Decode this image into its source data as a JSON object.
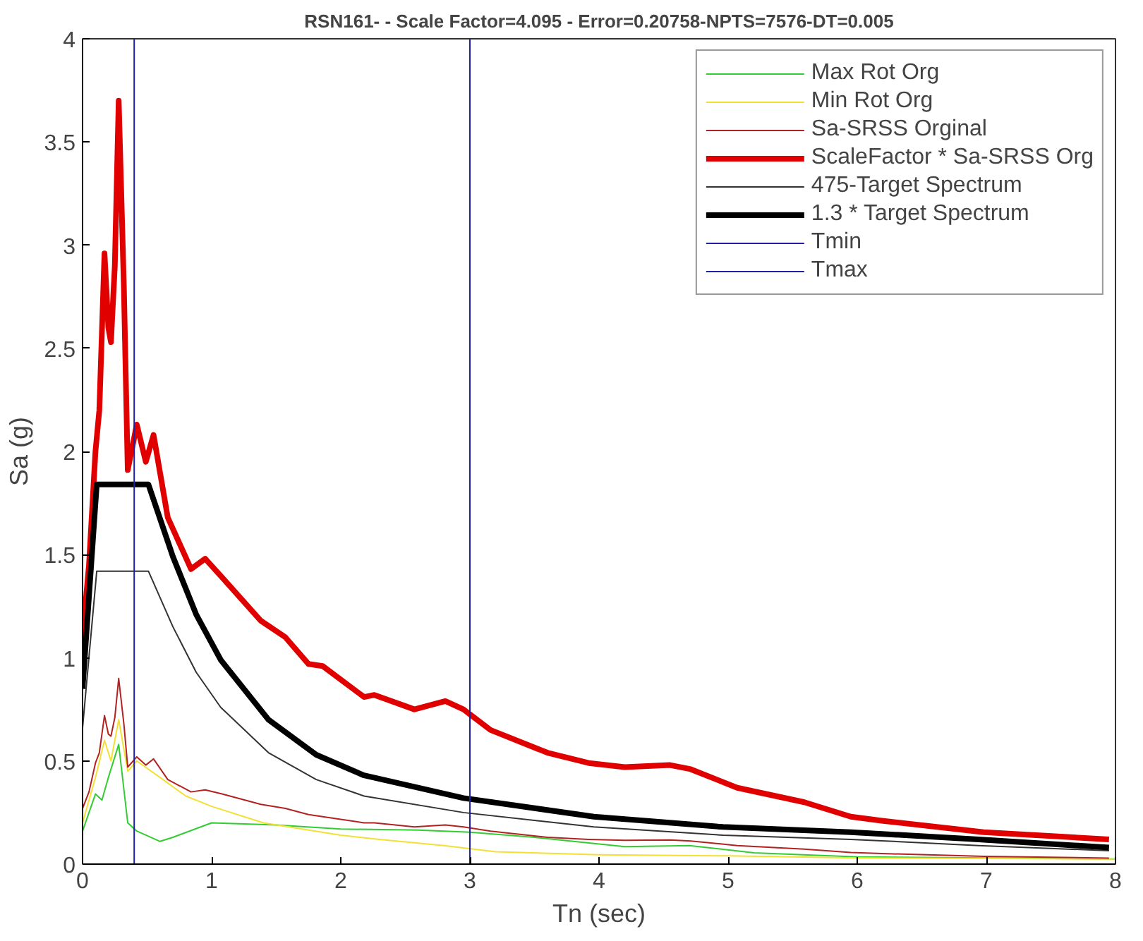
{
  "chart_data": {
    "type": "line",
    "title": "RSN161- - Scale Factor=4.095 - Error=0.20758-NPTS=7576-DT=0.005",
    "xlabel": "Tn (sec)",
    "ylabel": "Sa (g)",
    "xlim": [
      0,
      8
    ],
    "ylim": [
      0,
      4
    ],
    "xticks": [
      0,
      1,
      2,
      3,
      4,
      5,
      6,
      7,
      8
    ],
    "yticks": [
      0,
      0.5,
      1,
      1.5,
      2,
      2.5,
      3,
      3.5,
      4
    ],
    "grid": false,
    "legend": "top right",
    "line_style": "solid",
    "marker": "none",
    "series": [
      {
        "name": "Max Rot Org",
        "color": "#33cc33",
        "x": [
          0,
          0.1,
          0.15,
          0.2,
          0.28,
          0.35,
          0.42,
          0.6,
          0.7,
          1.0,
          1.5,
          2.0,
          2.6,
          3.0,
          3.5,
          4.2,
          4.7,
          5.2,
          6.0,
          7.0,
          8.0
        ],
        "values": [
          0.16,
          0.34,
          0.31,
          0.42,
          0.58,
          0.2,
          0.16,
          0.11,
          0.13,
          0.2,
          0.19,
          0.17,
          0.165,
          0.155,
          0.13,
          0.085,
          0.09,
          0.055,
          0.035,
          0.03,
          0.025
        ]
      },
      {
        "name": "Min Rot Org",
        "color": "#f2e035",
        "x": [
          0,
          0.1,
          0.17,
          0.22,
          0.28,
          0.35,
          0.42,
          0.6,
          0.8,
          1.0,
          1.4,
          1.7,
          2.0,
          2.3,
          2.8,
          3.2,
          4.0,
          5.0,
          6.0,
          8.0
        ],
        "values": [
          0.2,
          0.42,
          0.6,
          0.5,
          0.7,
          0.45,
          0.5,
          0.42,
          0.33,
          0.28,
          0.2,
          0.17,
          0.14,
          0.12,
          0.09,
          0.06,
          0.045,
          0.04,
          0.03,
          0.025
        ]
      },
      {
        "name": "Sa-SRSS Orginal",
        "color": "#b22222",
        "x": [
          0,
          0.05,
          0.1,
          0.13,
          0.17,
          0.2,
          0.22,
          0.25,
          0.28,
          0.32,
          0.35,
          0.42,
          0.49,
          0.55,
          0.66,
          0.84,
          0.95,
          1.08,
          1.38,
          1.57,
          1.75,
          1.86,
          2.18,
          2.26,
          2.57,
          2.81,
          2.95,
          3.16,
          3.6,
          3.92,
          4.2,
          4.55,
          4.71,
          5.07,
          5.59,
          5.95,
          6.19,
          6.98,
          7.95
        ],
        "values": [
          0.27,
          0.35,
          0.49,
          0.54,
          0.72,
          0.63,
          0.62,
          0.71,
          0.9,
          0.68,
          0.47,
          0.52,
          0.48,
          0.51,
          0.41,
          0.35,
          0.36,
          0.34,
          0.29,
          0.27,
          0.24,
          0.23,
          0.2,
          0.2,
          0.18,
          0.19,
          0.18,
          0.16,
          0.13,
          0.12,
          0.115,
          0.117,
          0.112,
          0.09,
          0.073,
          0.056,
          0.051,
          0.038,
          0.029
        ]
      },
      {
        "name": "ScaleFactor * Sa-SRSS Org",
        "color": "#e00000",
        "x": [
          0,
          0.05,
          0.1,
          0.13,
          0.17,
          0.2,
          0.22,
          0.25,
          0.28,
          0.32,
          0.35,
          0.42,
          0.49,
          0.55,
          0.66,
          0.84,
          0.95,
          1.08,
          1.38,
          1.57,
          1.75,
          1.86,
          2.18,
          2.26,
          2.57,
          2.81,
          2.95,
          3.16,
          3.6,
          3.92,
          4.2,
          4.55,
          4.71,
          5.07,
          5.59,
          5.95,
          6.19,
          6.98,
          7.95
        ],
        "values": [
          1.1,
          1.45,
          2.0,
          2.2,
          2.96,
          2.6,
          2.53,
          2.9,
          3.7,
          2.8,
          1.91,
          2.13,
          1.95,
          2.08,
          1.68,
          1.43,
          1.48,
          1.39,
          1.18,
          1.1,
          0.97,
          0.96,
          0.81,
          0.82,
          0.75,
          0.79,
          0.75,
          0.65,
          0.54,
          0.49,
          0.47,
          0.48,
          0.46,
          0.37,
          0.3,
          0.23,
          0.21,
          0.155,
          0.12
        ]
      },
      {
        "name": "475-Target Spectrum",
        "color": "#333333",
        "x": [
          0,
          0.11,
          0.51,
          0.7,
          0.88,
          1.07,
          1.44,
          1.81,
          2.18,
          2.95,
          3.96,
          4.96,
          5.95,
          6.94,
          7.95
        ],
        "values": [
          0.66,
          1.42,
          1.42,
          1.15,
          0.93,
          0.76,
          0.54,
          0.41,
          0.33,
          0.25,
          0.18,
          0.14,
          0.12,
          0.09,
          0.065
        ]
      },
      {
        "name": "1.3 * Target Spectrum",
        "color": "#000000",
        "x": [
          0,
          0.11,
          0.51,
          0.7,
          0.88,
          1.07,
          1.44,
          1.81,
          2.18,
          2.95,
          3.96,
          4.96,
          5.95,
          6.94,
          7.95
        ],
        "values": [
          0.85,
          1.84,
          1.84,
          1.49,
          1.21,
          0.99,
          0.7,
          0.53,
          0.43,
          0.32,
          0.23,
          0.18,
          0.155,
          0.12,
          0.08
        ]
      },
      {
        "name": "Tmin",
        "color": "#2020a0",
        "x": [
          0.4,
          0.4
        ],
        "values": [
          0,
          4
        ]
      },
      {
        "name": "Tmax",
        "color": "#2020a0",
        "x": [
          3.0,
          3.0
        ],
        "values": [
          0,
          4
        ]
      }
    ]
  }
}
